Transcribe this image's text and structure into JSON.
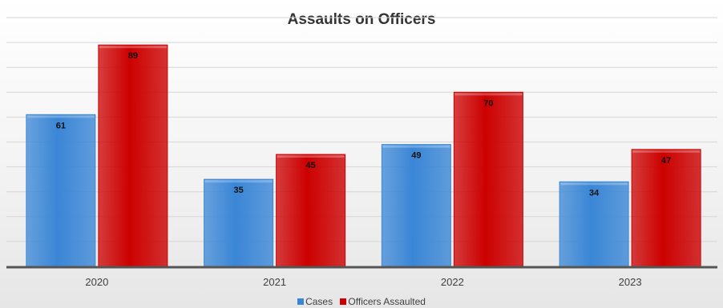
{
  "chart_data": {
    "type": "bar",
    "title": "Assaults on Officers",
    "categories": [
      "2020",
      "2021",
      "2022",
      "2023"
    ],
    "series": [
      {
        "name": "Cases",
        "color": "#3a86d6",
        "values": [
          61,
          35,
          49,
          34
        ]
      },
      {
        "name": "Officers Assaulted",
        "color": "#cc0000",
        "values": [
          89,
          45,
          70,
          47
        ]
      }
    ],
    "ylim": [
      0,
      100
    ],
    "grid": true,
    "legend": "bottom",
    "data_labels": true
  }
}
